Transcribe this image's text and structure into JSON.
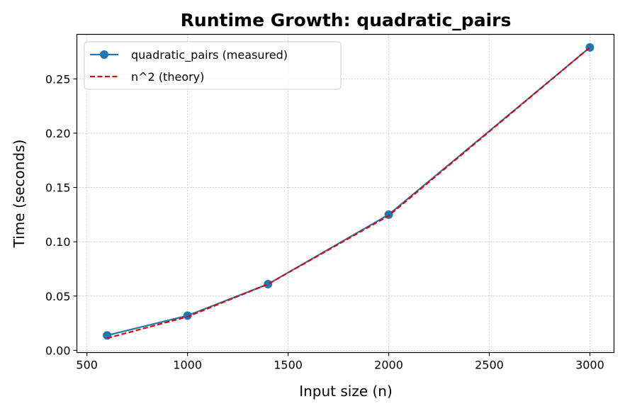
{
  "chart_data": {
    "type": "line",
    "title": "Runtime Growth: quadratic_pairs",
    "xlabel": "Input size (n)",
    "ylabel": "Time (seconds)",
    "xlim": [
      450,
      3120
    ],
    "ylim": [
      -0.002,
      0.291
    ],
    "x_ticks": [
      500,
      1000,
      1500,
      2000,
      2500,
      3000
    ],
    "y_ticks": [
      0.0,
      0.05,
      0.1,
      0.15,
      0.2,
      0.25
    ],
    "x_tick_labels": [
      "500",
      "1000",
      "1500",
      "2000",
      "2500",
      "3000"
    ],
    "y_tick_labels": [
      "0.00",
      "0.05",
      "0.10",
      "0.15",
      "0.20",
      "0.25"
    ],
    "grid": true,
    "legend_position": "top-left",
    "series": [
      {
        "name": "quadratic_pairs (measured)",
        "style": "solid-with-markers",
        "color": "#1f77b4",
        "x": [
          600,
          1000,
          1400,
          2000,
          3000
        ],
        "y": [
          0.0138,
          0.032,
          0.061,
          0.125,
          0.279
        ]
      },
      {
        "name": "n^2 (theory)",
        "style": "dashed",
        "color": "#e8000b",
        "x": [
          600,
          1000,
          1400,
          2000,
          3000
        ],
        "y": [
          0.0112,
          0.031,
          0.061,
          0.124,
          0.279
        ]
      }
    ]
  }
}
